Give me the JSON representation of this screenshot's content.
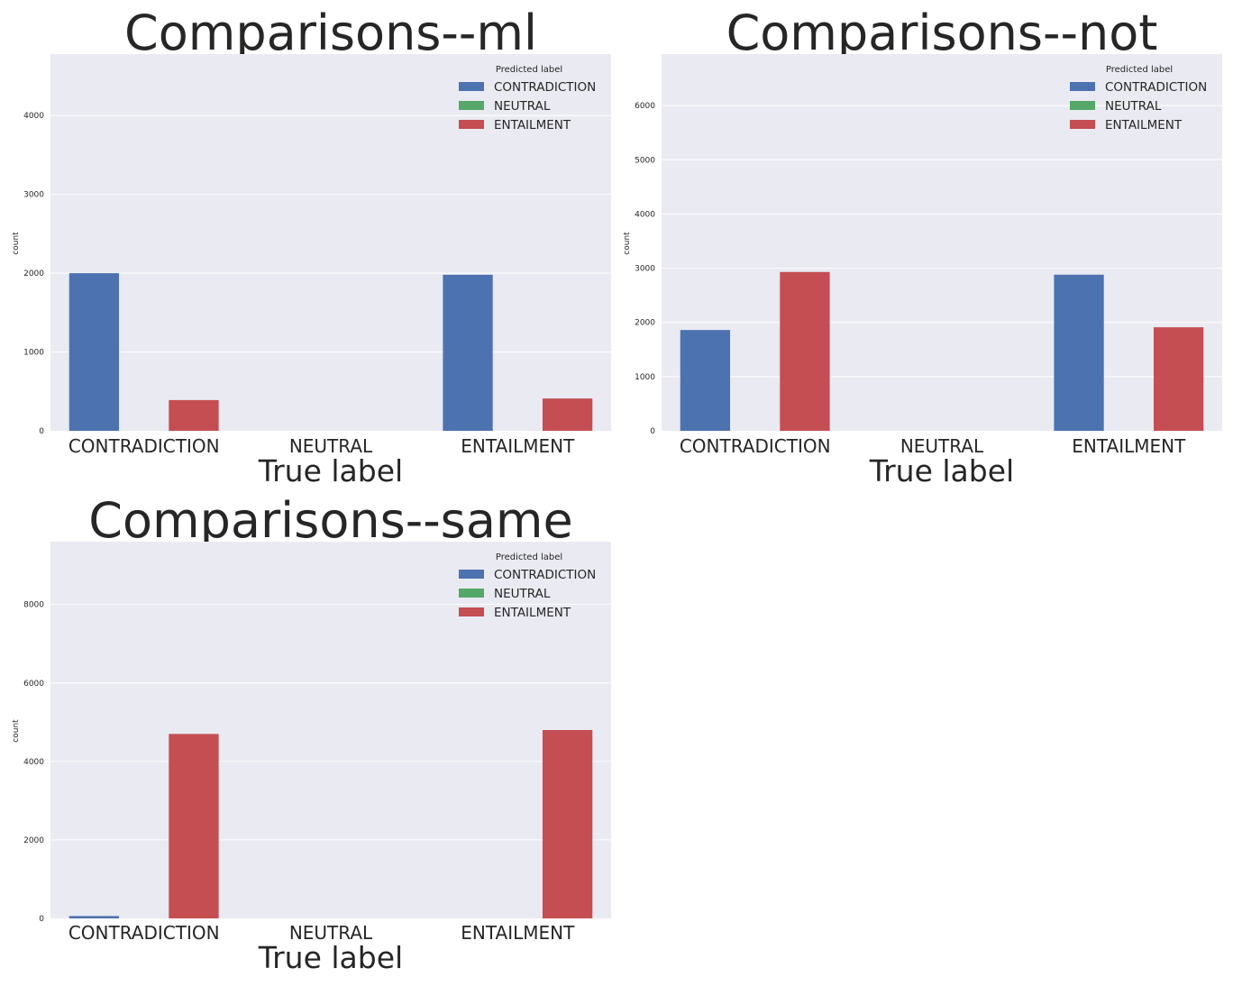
{
  "colors": {
    "plot_bg": "#eaeaf2",
    "grid": "#ffffff",
    "text": "#262626",
    "series": [
      "#4c72b0",
      "#55a868",
      "#c44e52"
    ]
  },
  "chart_data": [
    {
      "type": "bar",
      "title": "Comparisons--ml",
      "xlabel": "True label",
      "ylabel": "count",
      "categories": [
        "CONTRADICTION",
        "NEUTRAL",
        "ENTAILMENT"
      ],
      "legend_title": "Predicted label",
      "legend_position": "top-right",
      "grid": true,
      "ylim": [
        0,
        4780
      ],
      "yticks": [
        0,
        1000,
        2000,
        3000,
        4000
      ],
      "ytick_labels": [
        "0",
        "1000",
        "2000",
        "3000",
        "4000"
      ],
      "series": [
        {
          "name": "CONTRADICTION",
          "values": [
            2000,
            0,
            1980
          ]
        },
        {
          "name": "NEUTRAL",
          "values": [
            0,
            0,
            0
          ]
        },
        {
          "name": "ENTAILMENT",
          "values": [
            390,
            0,
            410
          ]
        }
      ]
    },
    {
      "type": "bar",
      "title": "Comparisons--not",
      "xlabel": "True label",
      "ylabel": "count",
      "categories": [
        "CONTRADICTION",
        "NEUTRAL",
        "ENTAILMENT"
      ],
      "legend_title": "Predicted label",
      "legend_position": "top-right",
      "grid": true,
      "ylim": [
        0,
        6950
      ],
      "yticks": [
        0,
        1000,
        2000,
        3000,
        4000,
        5000,
        6000
      ],
      "ytick_labels": [
        "0",
        "1000",
        "2000",
        "3000",
        "4000",
        "5000",
        "6000"
      ],
      "series": [
        {
          "name": "CONTRADICTION",
          "values": [
            1860,
            0,
            2880
          ]
        },
        {
          "name": "NEUTRAL",
          "values": [
            0,
            0,
            0
          ]
        },
        {
          "name": "ENTAILMENT",
          "values": [
            2930,
            0,
            1910
          ]
        }
      ]
    },
    {
      "type": "bar",
      "title": "Comparisons--same",
      "xlabel": "True label",
      "ylabel": "count",
      "categories": [
        "CONTRADICTION",
        "NEUTRAL",
        "ENTAILMENT"
      ],
      "legend_title": "Predicted label",
      "legend_position": "top-right",
      "grid": true,
      "ylim": [
        0,
        9600
      ],
      "yticks": [
        0,
        2000,
        4000,
        6000,
        8000
      ],
      "ytick_labels": [
        "0",
        "2000",
        "4000",
        "6000",
        "8000"
      ],
      "series": [
        {
          "name": "CONTRADICTION",
          "values": [
            60,
            0,
            0
          ]
        },
        {
          "name": "NEUTRAL",
          "values": [
            0,
            0,
            0
          ]
        },
        {
          "name": "ENTAILMENT",
          "values": [
            4700,
            0,
            4800
          ]
        }
      ]
    }
  ]
}
